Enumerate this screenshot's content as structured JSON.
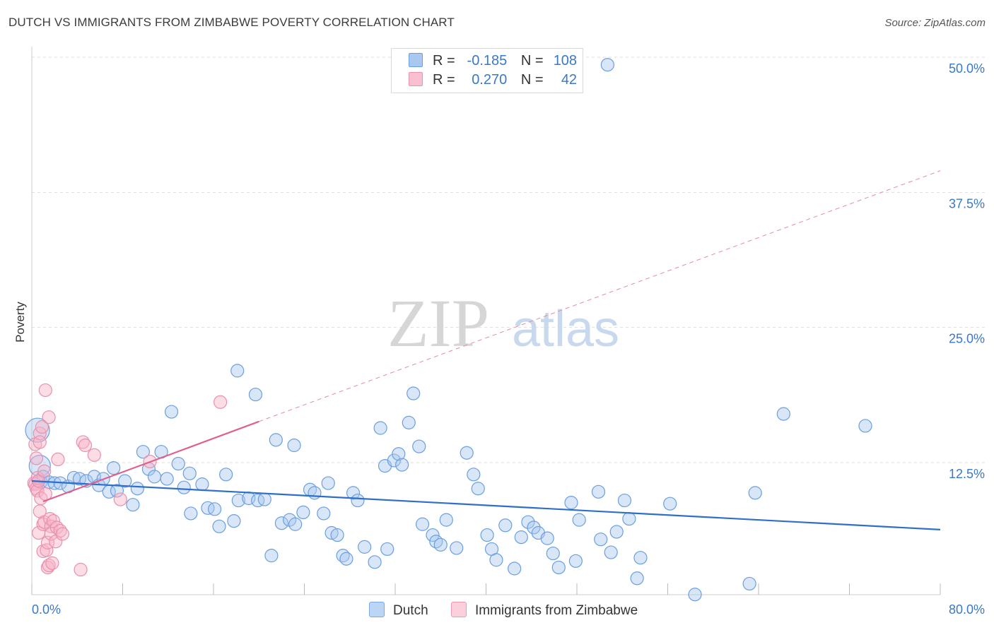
{
  "title": "DUTCH VS IMMIGRANTS FROM ZIMBABWE POVERTY CORRELATION CHART",
  "source": "Source: ZipAtlas.com",
  "watermark": {
    "zip": "ZIP",
    "atlas": "atlas"
  },
  "legend": {
    "r_label": "R =",
    "n_label": "N =",
    "rows": [
      {
        "r": "-0.185",
        "n": "108",
        "color": "#a8c8f0",
        "stroke": "#6a9fe0"
      },
      {
        "r": "0.270",
        "n": "42",
        "color": "#f8c0d0",
        "stroke": "#e890ac"
      }
    ]
  },
  "bottom_legend": [
    {
      "label": "Dutch",
      "color": "#bcd5f5",
      "stroke": "#7aaae6"
    },
    {
      "label": "Immigrants from Zimbabwe",
      "color": "#fbd0dc",
      "stroke": "#ec9ab3"
    }
  ],
  "chart_data": {
    "type": "scatter",
    "title": "DUTCH VS IMMIGRANTS FROM ZIMBABWE POVERTY CORRELATION CHART",
    "xlabel": "",
    "ylabel": "Poverty",
    "xlim": [
      0,
      80
    ],
    "ylim": [
      0,
      52
    ],
    "x_tick_labels": [
      "0.0%",
      "80.0%"
    ],
    "y_ticks": [
      12.5,
      25.0,
      37.5,
      50.0
    ],
    "y_tick_labels": [
      "12.5%",
      "25.0%",
      "37.5%",
      "50.0%"
    ],
    "grid": true,
    "legend_position": "top-center",
    "series": [
      {
        "name": "Dutch",
        "color": "#6a9fe0",
        "trend": {
          "x": [
            0,
            80
          ],
          "y": [
            10.8,
            6.3
          ],
          "dashed": false
        },
        "points": [
          [
            0.5,
            15.5
          ],
          [
            0.7,
            12.2
          ],
          [
            0.8,
            10.7
          ],
          [
            1.0,
            11.2
          ],
          [
            1.5,
            10.7
          ],
          [
            2.0,
            10.6
          ],
          [
            2.5,
            10.6
          ],
          [
            3.2,
            10.3
          ],
          [
            3.7,
            11.1
          ],
          [
            4.2,
            11.0
          ],
          [
            4.8,
            10.8
          ],
          [
            5.5,
            11.2
          ],
          [
            5.9,
            10.4
          ],
          [
            6.3,
            11.0
          ],
          [
            6.8,
            9.8
          ],
          [
            7.5,
            9.9
          ],
          [
            8.2,
            10.8
          ],
          [
            7.2,
            12.0
          ],
          [
            9.3,
            10.1
          ],
          [
            8.9,
            8.6
          ],
          [
            9.8,
            13.5
          ],
          [
            10.3,
            11.9
          ],
          [
            10.8,
            11.2
          ],
          [
            11.4,
            13.5
          ],
          [
            11.9,
            11.0
          ],
          [
            12.3,
            17.2
          ],
          [
            12.9,
            12.4
          ],
          [
            13.4,
            10.2
          ],
          [
            13.9,
            11.5
          ],
          [
            14.0,
            7.8
          ],
          [
            15.0,
            10.5
          ],
          [
            15.5,
            8.3
          ],
          [
            16.1,
            8.2
          ],
          [
            16.5,
            6.6
          ],
          [
            17.1,
            11.4
          ],
          [
            17.8,
            7.1
          ],
          [
            18.2,
            9.0
          ],
          [
            18.1,
            21.0
          ],
          [
            19.1,
            9.2
          ],
          [
            19.7,
            18.8
          ],
          [
            19.9,
            9.0
          ],
          [
            20.5,
            9.1
          ],
          [
            21.1,
            3.9
          ],
          [
            21.5,
            14.6
          ],
          [
            22.0,
            6.9
          ],
          [
            23.1,
            14.1
          ],
          [
            22.7,
            7.2
          ],
          [
            23.2,
            6.8
          ],
          [
            23.9,
            7.9
          ],
          [
            24.5,
            10.0
          ],
          [
            24.9,
            9.7
          ],
          [
            25.7,
            7.8
          ],
          [
            26.1,
            10.6
          ],
          [
            26.4,
            6.0
          ],
          [
            26.9,
            5.8
          ],
          [
            27.4,
            3.9
          ],
          [
            27.7,
            3.6
          ],
          [
            28.3,
            9.7
          ],
          [
            28.7,
            9.0
          ],
          [
            29.3,
            4.7
          ],
          [
            30.2,
            3.3
          ],
          [
            30.7,
            15.7
          ],
          [
            31.1,
            12.2
          ],
          [
            31.3,
            4.5
          ],
          [
            31.9,
            12.7
          ],
          [
            32.3,
            13.3
          ],
          [
            32.6,
            12.3
          ],
          [
            33.2,
            16.2
          ],
          [
            33.6,
            18.9
          ],
          [
            34.1,
            14.0
          ],
          [
            34.4,
            6.8
          ],
          [
            35.3,
            5.8
          ],
          [
            35.6,
            5.2
          ],
          [
            36.0,
            4.9
          ],
          [
            36.5,
            7.2
          ],
          [
            37.4,
            4.6
          ],
          [
            38.3,
            13.4
          ],
          [
            38.9,
            11.4
          ],
          [
            39.3,
            10.1
          ],
          [
            40.1,
            5.8
          ],
          [
            40.5,
            4.5
          ],
          [
            40.9,
            3.5
          ],
          [
            41.7,
            6.7
          ],
          [
            42.5,
            2.7
          ],
          [
            43.1,
            5.6
          ],
          [
            43.7,
            7.0
          ],
          [
            44.2,
            6.5
          ],
          [
            44.6,
            6.0
          ],
          [
            45.4,
            5.5
          ],
          [
            45.9,
            4.1
          ],
          [
            46.4,
            2.8
          ],
          [
            47.5,
            8.8
          ],
          [
            47.9,
            3.4
          ],
          [
            48.2,
            7.2
          ],
          [
            49.9,
            9.8
          ],
          [
            50.1,
            5.4
          ],
          [
            51.0,
            4.2
          ],
          [
            51.5,
            6.1
          ],
          [
            52.2,
            9.0
          ],
          [
            52.6,
            7.3
          ],
          [
            53.3,
            1.8
          ],
          [
            53.6,
            3.7
          ],
          [
            56.2,
            8.7
          ],
          [
            58.4,
            0.3
          ],
          [
            63.2,
            1.3
          ],
          [
            63.7,
            9.7
          ],
          [
            66.2,
            17.0
          ],
          [
            73.4,
            15.9
          ],
          [
            50.7,
            49.3
          ]
        ]
      },
      {
        "name": "Immigrants from Zimbabwe",
        "color": "#e890ac",
        "trend": {
          "x": [
            1,
            20
          ],
          "y": [
            8.9,
            16.3
          ],
          "dashed": false,
          "extended_dashed_to": [
            80,
            39.5
          ]
        },
        "points": [
          [
            0.2,
            10.6
          ],
          [
            0.3,
            14.2
          ],
          [
            0.3,
            10.5
          ],
          [
            0.4,
            10.1
          ],
          [
            0.5,
            11.1
          ],
          [
            0.5,
            9.9
          ],
          [
            0.6,
            10.8
          ],
          [
            0.6,
            6.0
          ],
          [
            0.7,
            15.2
          ],
          [
            0.7,
            14.4
          ],
          [
            0.7,
            8.0
          ],
          [
            0.8,
            9.2
          ],
          [
            0.9,
            15.8
          ],
          [
            1.0,
            6.8
          ],
          [
            1.0,
            4.3
          ],
          [
            1.1,
            11.7
          ],
          [
            1.1,
            7.0
          ],
          [
            1.2,
            19.2
          ],
          [
            1.2,
            9.6
          ],
          [
            1.3,
            4.4
          ],
          [
            1.4,
            2.8
          ],
          [
            1.4,
            5.1
          ],
          [
            1.5,
            16.7
          ],
          [
            1.5,
            3.0
          ],
          [
            1.6,
            7.3
          ],
          [
            1.7,
            6.6
          ],
          [
            1.7,
            5.9
          ],
          [
            1.8,
            3.2
          ],
          [
            1.9,
            7.1
          ],
          [
            2.1,
            5.2
          ],
          [
            2.2,
            6.5
          ],
          [
            2.3,
            12.8
          ],
          [
            2.5,
            6.2
          ],
          [
            2.7,
            5.9
          ],
          [
            4.3,
            2.6
          ],
          [
            4.5,
            14.4
          ],
          [
            4.7,
            14.1
          ],
          [
            5.5,
            13.2
          ],
          [
            7.8,
            9.1
          ],
          [
            10.4,
            12.6
          ],
          [
            16.6,
            18.1
          ],
          [
            0.4,
            12.9
          ]
        ]
      }
    ]
  }
}
